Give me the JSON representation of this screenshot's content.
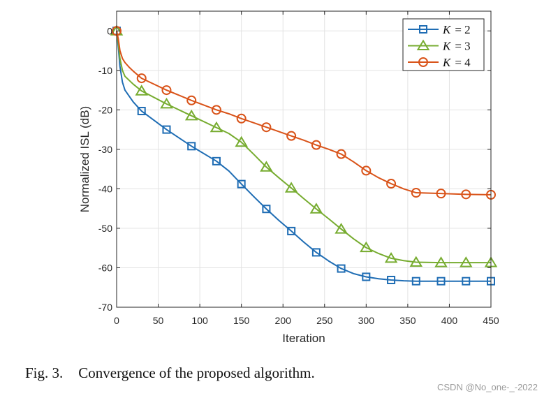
{
  "chart_data": {
    "type": "line",
    "title": "",
    "xlabel": "Iteration",
    "ylabel": "Normalized ISL (dB)",
    "xlim": [
      0,
      450
    ],
    "ylim": [
      -70,
      5
    ],
    "xticks": [
      0,
      50,
      100,
      150,
      200,
      250,
      300,
      350,
      400,
      450
    ],
    "yticks": [
      0,
      -10,
      -20,
      -30,
      -40,
      -50,
      -60,
      -70
    ],
    "grid": true,
    "legend_position": "top-right",
    "series": [
      {
        "name": "K = 2",
        "legend_label": "K",
        "legend_value": "= 2",
        "color": "#1f6db4",
        "marker": "square",
        "line_x": [
          0,
          2,
          4,
          7,
          10,
          15,
          20,
          30,
          60,
          90,
          120,
          135,
          150,
          165,
          180,
          195,
          210,
          225,
          240,
          255,
          270,
          285,
          300,
          315,
          330,
          345,
          360,
          390,
          420,
          450
        ],
        "line_y": [
          0,
          -4,
          -9,
          -13,
          -15,
          -16.5,
          -18,
          -20.3,
          -25,
          -29.2,
          -33,
          -35.5,
          -38.8,
          -42,
          -45.1,
          -48,
          -50.7,
          -53.5,
          -56.1,
          -58.3,
          -60.2,
          -61.5,
          -62.3,
          -62.8,
          -63.1,
          -63.3,
          -63.4,
          -63.4,
          -63.4,
          -63.4
        ],
        "marker_x": [
          0,
          30,
          60,
          90,
          120,
          150,
          180,
          210,
          240,
          270,
          300,
          330,
          360,
          390,
          420,
          450
        ],
        "marker_y": [
          0,
          -20.3,
          -25,
          -29.2,
          -33,
          -38.8,
          -45.1,
          -50.7,
          -56.1,
          -60.2,
          -62.3,
          -63.1,
          -63.4,
          -63.4,
          -63.4,
          -63.4
        ]
      },
      {
        "name": "K = 3",
        "legend_label": "K",
        "legend_value": "= 3",
        "color": "#77ac30",
        "marker": "triangle",
        "line_x": [
          0,
          2,
          4,
          7,
          10,
          15,
          20,
          30,
          60,
          90,
          120,
          135,
          150,
          165,
          180,
          195,
          210,
          225,
          240,
          255,
          270,
          285,
          300,
          315,
          330,
          345,
          360,
          390,
          420,
          450
        ],
        "line_y": [
          0,
          -3,
          -7,
          -10,
          -11.5,
          -12.5,
          -13.5,
          -15.2,
          -18.5,
          -21.5,
          -24.5,
          -26,
          -28.2,
          -31.3,
          -34.5,
          -37.2,
          -39.8,
          -42.5,
          -45.1,
          -47.6,
          -50.2,
          -52.7,
          -54.9,
          -56.4,
          -57.6,
          -58.2,
          -58.6,
          -58.7,
          -58.7,
          -58.7
        ],
        "marker_x": [
          0,
          30,
          60,
          90,
          120,
          150,
          180,
          210,
          240,
          270,
          300,
          330,
          360,
          390,
          420,
          450
        ],
        "marker_y": [
          0,
          -15.2,
          -18.5,
          -21.5,
          -24.5,
          -28.2,
          -34.5,
          -39.8,
          -45.1,
          -50.2,
          -54.9,
          -57.6,
          -58.6,
          -58.7,
          -58.7,
          -58.7
        ]
      },
      {
        "name": "K = 4",
        "legend_label": "K",
        "legend_value": "= 4",
        "color": "#d95319",
        "marker": "circle",
        "line_x": [
          0,
          2,
          4,
          7,
          10,
          15,
          20,
          30,
          60,
          90,
          120,
          135,
          150,
          165,
          180,
          195,
          210,
          225,
          240,
          255,
          270,
          285,
          300,
          315,
          330,
          345,
          360,
          390,
          420,
          450
        ],
        "line_y": [
          0,
          -2,
          -5,
          -7,
          -8,
          -9.2,
          -10.2,
          -12,
          -15,
          -17.6,
          -20,
          -21,
          -22.2,
          -23.3,
          -24.4,
          -25.5,
          -26.6,
          -27.7,
          -28.9,
          -30,
          -31.2,
          -33.2,
          -35.4,
          -37.2,
          -38.7,
          -40,
          -41,
          -41.2,
          -41.4,
          -41.5
        ],
        "marker_x": [
          0,
          30,
          60,
          90,
          120,
          150,
          180,
          210,
          240,
          270,
          300,
          330,
          360,
          390,
          420,
          450
        ],
        "marker_y": [
          0,
          -12,
          -15,
          -17.6,
          -20,
          -22.2,
          -24.4,
          -26.6,
          -28.9,
          -31.2,
          -35.4,
          -38.7,
          -41,
          -41.2,
          -41.4,
          -41.5
        ]
      }
    ]
  },
  "caption": {
    "label": "Fig. 3.",
    "text": "Convergence of the proposed algorithm."
  },
  "watermark": "CSDN @No_one-_-2022"
}
